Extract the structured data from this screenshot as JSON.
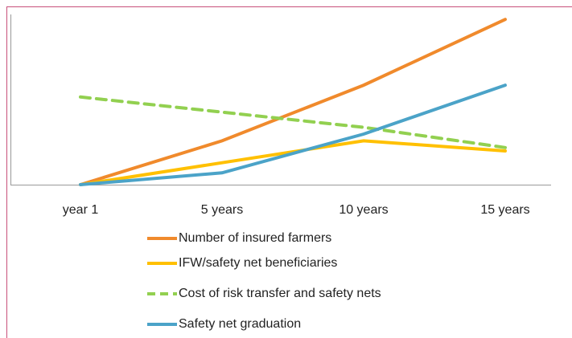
{
  "chart_data": {
    "type": "line",
    "categories": [
      "year 1",
      "5 years",
      "10 years",
      "15 years"
    ],
    "series": [
      {
        "name": "Number of insured farmers",
        "color": "#f08a2c",
        "values": [
          0,
          26,
          59,
          98
        ]
      },
      {
        "name": "IFW/safety net beneficiaries",
        "color": "#ffc000",
        "values": [
          0,
          13,
          26,
          20
        ]
      },
      {
        "name": "Cost of risk transfer and safety nets",
        "color": "#92d050",
        "dashed": true,
        "values": [
          52,
          43,
          34,
          22
        ]
      },
      {
        "name": "Safety net graduation",
        "color": "#4ba3c8",
        "values": [
          0,
          7,
          30,
          59
        ]
      }
    ],
    "ylim": [
      0,
      100
    ],
    "legend": "bottom"
  }
}
